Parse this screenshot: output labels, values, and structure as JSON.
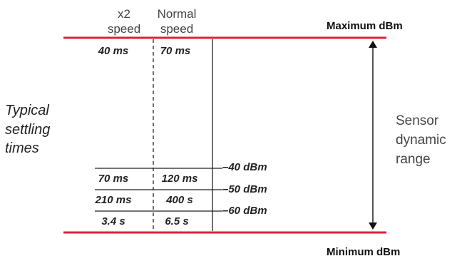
{
  "headers": {
    "col1_line1": "x2",
    "col1_line2": "speed",
    "col2_line1": "Normal",
    "col2_line2": "speed"
  },
  "max_label": "Maximum dBm",
  "min_label": "Minimum dBm",
  "top_row": {
    "col1": "40 ms",
    "col2": "70 ms"
  },
  "left_caption": [
    "Typical",
    "settling",
    "times"
  ],
  "right_caption": [
    "Sensor",
    "dynamic",
    "range"
  ],
  "rows": [
    {
      "col1": "70 ms",
      "col2": "120 ms",
      "level": "–40 dBm"
    },
    {
      "col1": "210 ms",
      "col2": "400 s",
      "level": "–50 dBm"
    },
    {
      "col1": "3.4 s",
      "col2": "6.5 s",
      "level": "–60 dBm"
    }
  ],
  "colors": {
    "accent": "#d9233a",
    "line": "#222222"
  }
}
